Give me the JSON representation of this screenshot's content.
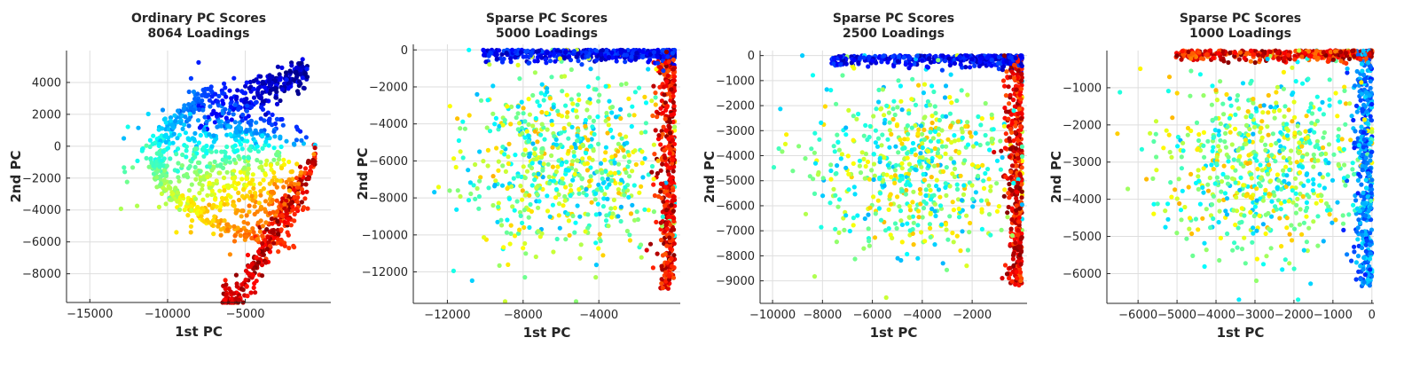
{
  "chart_data": [
    {
      "type": "scatter",
      "title": [
        "Ordinary PC Scores",
        "8064 Loadings"
      ],
      "xlabel": "1st PC",
      "ylabel": "2nd PC",
      "xlim": [
        -16500,
        500
      ],
      "ylim": [
        -9800,
        6000
      ],
      "xticks": [
        -15000,
        -10000,
        -5000
      ],
      "yticks": [
        4000,
        2000,
        0,
        -2000,
        -4000,
        -6000,
        -8000
      ],
      "grid": true,
      "colormap": "jet",
      "shape": "ordinary",
      "n_points": 1400,
      "seed": 11,
      "tip": [
        0,
        0
      ],
      "pc1_range": [
        -16000,
        0
      ],
      "pc2_range": [
        -9800,
        5800
      ]
    },
    {
      "type": "scatter",
      "title": [
        "Sparse PC Scores",
        "5000 Loadings"
      ],
      "xlabel": "1st PC",
      "ylabel": "2nd PC",
      "xlim": [
        -13800,
        300
      ],
      "ylim": [
        -13700,
        300
      ],
      "xticks": [
        -12000,
        -8000,
        -4000
      ],
      "yticks": [
        0,
        -2000,
        -4000,
        -6000,
        -8000,
        -10000,
        -12000
      ],
      "grid": true,
      "colormap": "jet",
      "shape": "L",
      "corner": "top-right",
      "n_points": 1600,
      "seed": 23,
      "extent": [
        -13500,
        -13600
      ]
    },
    {
      "type": "scatter",
      "title": [
        "Sparse PC Scores",
        "2500 Loadings"
      ],
      "xlabel": "1st PC",
      "ylabel": "2nd PC",
      "xlim": [
        -10500,
        200
      ],
      "ylim": [
        -9900,
        200
      ],
      "xticks": [
        -10000,
        -8000,
        -6000,
        -4000,
        -2000
      ],
      "yticks": [
        0,
        -1000,
        -2000,
        -3000,
        -4000,
        -5000,
        -6000,
        -7000,
        -8000,
        -9000
      ],
      "grid": true,
      "colormap": "jet",
      "shape": "L",
      "corner": "top-right",
      "n_points": 1500,
      "seed": 37,
      "extent": [
        -10200,
        -9700
      ]
    },
    {
      "type": "scatter",
      "title": [
        "Sparse PC Scores",
        "1000 Loadings"
      ],
      "xlabel": "1st PC",
      "ylabel": "2nd PC",
      "xlim": [
        -6800,
        50
      ],
      "ylim": [
        -6800,
        0
      ],
      "xticks": [
        -6000,
        -5000,
        -4000,
        -3000,
        -2000,
        -1000,
        0
      ],
      "yticks": [
        -1000,
        -2000,
        -3000,
        -4000,
        -5000,
        -6000
      ],
      "grid": true,
      "colormap": "jet",
      "shape": "L-inverted",
      "corner": "top-right",
      "n_points": 1500,
      "seed": 51,
      "extent": [
        -6700,
        -6700
      ]
    }
  ]
}
